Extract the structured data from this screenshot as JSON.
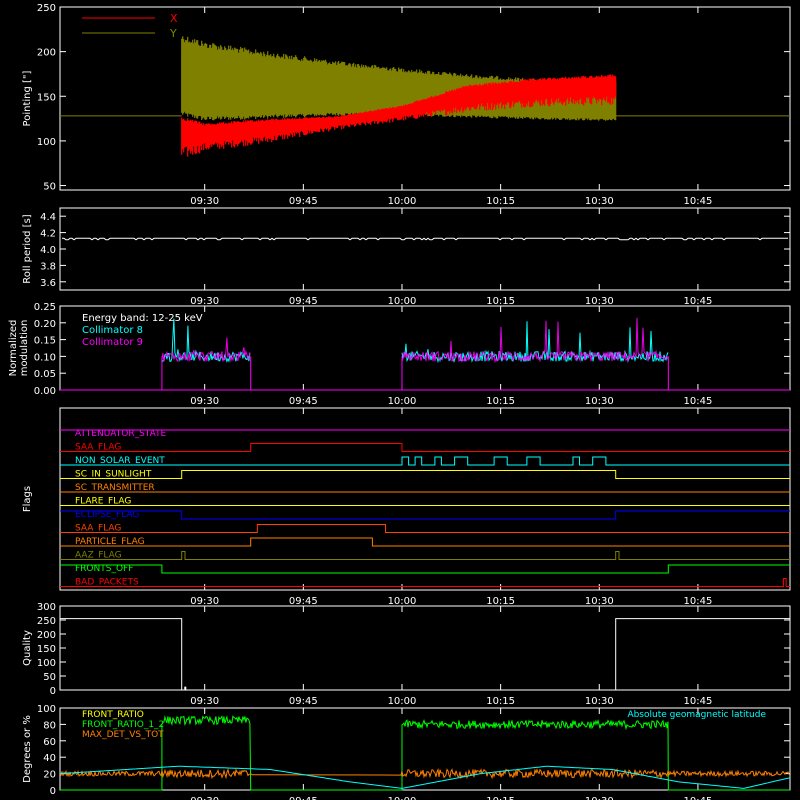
{
  "time_ticks": [
    "09:30",
    "09:45",
    "10:00",
    "10:15",
    "10:30",
    "10:45"
  ],
  "time_ticks_minutes": [
    570,
    585,
    600,
    615,
    630,
    645
  ],
  "time_range_minutes": [
    548,
    659
  ],
  "chart_data": [
    {
      "type": "area",
      "id": "pointing",
      "ylabel": "Pointing [\"]",
      "ylim": [
        45,
        250
      ],
      "yticks": [
        50,
        100,
        150,
        200,
        250
      ],
      "legend": [
        "X",
        "Y"
      ],
      "colors": {
        "X": "#ff0000",
        "Y": "#808000"
      },
      "reference_level": 128,
      "data_start_minutes": 566.5,
      "data_end_minutes": 632.5,
      "series": [
        {
          "name": "X",
          "x": [
            566.5,
            570,
            580,
            590,
            600,
            610,
            620,
            632.5
          ],
          "lower": [
            78,
            88,
            98,
            112,
            122,
            132,
            138,
            140
          ],
          "upper": [
            128,
            120,
            125,
            128,
            140,
            163,
            170,
            175
          ]
        },
        {
          "name": "Y",
          "x": [
            566.5,
            570,
            580,
            590,
            600,
            610,
            620,
            632.5
          ],
          "lower": [
            128,
            122,
            125,
            128,
            128,
            126,
            124,
            122
          ],
          "upper": [
            220,
            212,
            200,
            190,
            182,
            175,
            170,
            168
          ]
        }
      ]
    },
    {
      "type": "line",
      "id": "roll",
      "ylabel": "Roll period [s]",
      "ylim": [
        3.5,
        4.5
      ],
      "yticks": [
        "3.6",
        "3.8",
        "4.0",
        "4.2",
        "4.4"
      ],
      "series": [
        {
          "name": "",
          "x": [
            548,
            659
          ],
          "y": [
            4.13,
            4.13
          ]
        }
      ]
    },
    {
      "type": "line",
      "id": "modulation",
      "ylabel": "Normalized modulation",
      "ylim": [
        0,
        0.25
      ],
      "yticks": [
        "0.00",
        "0.05",
        "0.10",
        "0.15",
        "0.20",
        "0.25"
      ],
      "annotations": [
        "Energy band: 12-25 keV",
        "Collimator 8",
        "Collimator 9"
      ],
      "colors": {
        "Collimator 8": "#00ffff",
        "Collimator 9": "#ff00ff"
      },
      "segments": [
        [
          563.5,
          577
        ],
        [
          600,
          640.5
        ]
      ],
      "baseline": 0.1
    },
    {
      "type": "line",
      "id": "flags",
      "ylabel": "Flags",
      "flags": [
        {
          "name": "ATTENUATOR_STATE",
          "color": "#ff00ff",
          "changes": []
        },
        {
          "name": "SAA_FLAG",
          "color": "#ff0000",
          "changes": [
            [
              577,
              1
            ],
            [
              600,
              0
            ]
          ]
        },
        {
          "name": "NON_SOLAR_EVENT",
          "color": "#00ffff",
          "changes": [
            [
              600,
              1
            ],
            [
              601,
              0
            ],
            [
              602,
              1
            ],
            [
              603,
              0
            ],
            [
              605,
              1
            ],
            [
              606,
              0
            ],
            [
              608,
              1
            ],
            [
              610,
              0
            ],
            [
              614,
              1
            ],
            [
              616,
              0
            ],
            [
              619,
              1
            ],
            [
              621,
              0
            ],
            [
              626,
              1
            ],
            [
              627,
              0
            ],
            [
              629,
              1
            ],
            [
              631,
              0
            ]
          ]
        },
        {
          "name": "SC_IN_SUNLIGHT",
          "color": "#ffff00",
          "changes": [
            [
              566.5,
              1
            ],
            [
              632.5,
              0
            ]
          ]
        },
        {
          "name": "SC_TRANSMITTER",
          "color": "#ff8000",
          "changes": []
        },
        {
          "name": "FLARE_FLAG",
          "color": "#ffff00",
          "changes": []
        },
        {
          "name": "ECLIPSE_FLAG",
          "color": "#0000ff",
          "changes": [
            [
              566.5,
              0
            ],
            [
              632.5,
              1
            ]
          ]
        },
        {
          "name": "SAA_FLAG",
          "color": "#ff4000",
          "changes": [
            [
              578,
              1
            ],
            [
              597.5,
              0
            ]
          ]
        },
        {
          "name": "PARTICLE_FLAG",
          "color": "#ff8000",
          "changes": [
            [
              577,
              1
            ],
            [
              595.5,
              0
            ]
          ]
        },
        {
          "name": "AAZ_FLAG",
          "color": "#808000",
          "changes": [
            [
              566.5,
              1
            ],
            [
              567,
              0
            ],
            [
              632.5,
              1
            ],
            [
              633,
              0
            ]
          ]
        },
        {
          "name": "FRONTS_OFF",
          "color": "#00ff00",
          "changes": [
            [
              563.5,
              0
            ],
            [
              640.5,
              1
            ]
          ]
        },
        {
          "name": "BAD_PACKETS",
          "color": "#ff0000",
          "changes": [
            [
              658,
              1
            ],
            [
              658.4,
              0
            ]
          ]
        }
      ],
      "initial_states": [
        1,
        0,
        0,
        0,
        0,
        0,
        1,
        0,
        0,
        0,
        1,
        0
      ]
    },
    {
      "type": "line",
      "id": "quality",
      "ylabel": "Quality",
      "ylim": [
        0,
        300
      ],
      "yticks": [
        "0",
        "50",
        "100",
        "150",
        "200",
        "250",
        "300"
      ],
      "series": [
        {
          "name": "",
          "x": [
            548,
            566.5,
            566.5,
            632.5,
            632.5,
            659
          ],
          "y": [
            255,
            255,
            0,
            0,
            255,
            255
          ]
        }
      ]
    },
    {
      "type": "line",
      "id": "ratios",
      "ylabel": "Degrees or %",
      "ylim": [
        0,
        100
      ],
      "yticks": [
        "0",
        "20",
        "40",
        "60",
        "80",
        "100"
      ],
      "legend": [
        "FRONT_RATIO",
        "FRONT_RATIO_1_2",
        "MAX_DET_VS_TOT",
        "Absolute geomagnetic latitude"
      ],
      "colors": {
        "FRONT_RATIO": "#ffff00",
        "FRONT_RATIO_1_2": "#00ff00",
        "MAX_DET_VS_TOT": "#ff8000",
        "Absolute geomagnetic latitude": "#00ffff"
      },
      "green_segments": [
        [
          563.5,
          577,
          85
        ],
        [
          600,
          640.5,
          80
        ]
      ],
      "orange_level": 20,
      "latitude": {
        "x": [
          548,
          566,
          580,
          592,
          600,
          612,
          622,
          632,
          642,
          652,
          659
        ],
        "y": [
          20,
          29,
          25,
          10,
          2,
          20,
          29,
          25,
          10,
          2,
          15
        ]
      }
    }
  ]
}
